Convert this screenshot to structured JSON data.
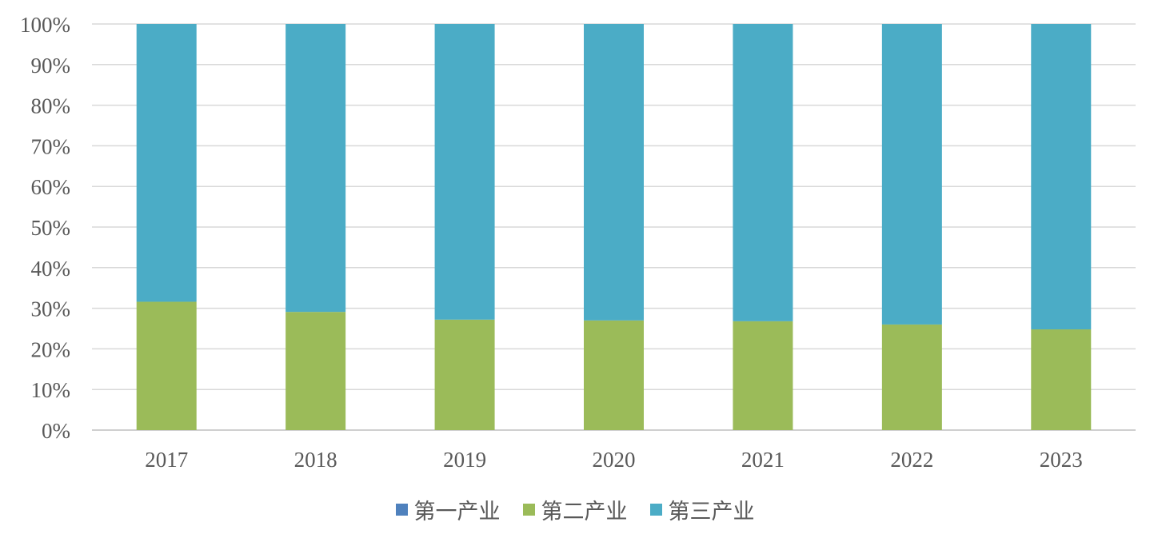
{
  "chart_data": {
    "type": "bar",
    "stacked": true,
    "percent": true,
    "categories": [
      "2017",
      "2018",
      "2019",
      "2020",
      "2021",
      "2022",
      "2023"
    ],
    "series": [
      {
        "name": "第一产业",
        "color": "#4F81BD",
        "values": [
          0,
          0,
          0,
          0,
          0,
          0,
          0
        ]
      },
      {
        "name": "第二产业",
        "color": "#9BBB59",
        "values": [
          31.6,
          29.1,
          27.2,
          27.0,
          26.8,
          26.0,
          24.8
        ]
      },
      {
        "name": "第三产业",
        "color": "#4BACC6",
        "values": [
          68.4,
          70.9,
          72.8,
          73.0,
          73.2,
          74.0,
          75.2
        ]
      }
    ],
    "yticks": [
      "0%",
      "10%",
      "20%",
      "30%",
      "40%",
      "50%",
      "60%",
      "70%",
      "80%",
      "90%",
      "100%"
    ],
    "ylim": [
      0,
      100
    ],
    "grid": true,
    "legend_position": "bottom"
  }
}
